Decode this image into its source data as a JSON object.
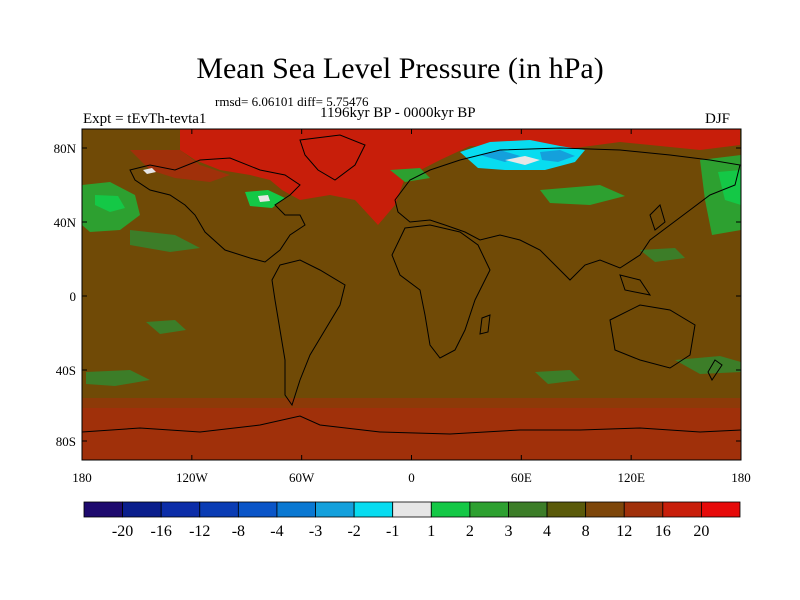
{
  "header": {
    "title": "Mean Sea Level Pressure (in hPa)",
    "stats": "rmsd= 6.06101 diff= 5.75476",
    "experiment": "Expt = tEvTh-tevta1",
    "period": "1196kyr BP - 0000kyr BP",
    "season": "DJF"
  },
  "axes": {
    "y_ticks": [
      "80N",
      "40N",
      "0",
      "40S",
      "80S"
    ],
    "x_ticks": [
      "180",
      "120W",
      "60W",
      "0",
      "60E",
      "120E",
      "180"
    ]
  },
  "colorbar": {
    "labels": [
      "-20",
      "-16",
      "-12",
      "-8",
      "-4",
      "-3",
      "-2",
      "-1",
      "1",
      "2",
      "3",
      "4",
      "8",
      "12",
      "16",
      "20"
    ],
    "colors": [
      "#1e0a6e",
      "#0a1e8c",
      "#0c2da8",
      "#0a3cb4",
      "#0a55c8",
      "#0a78d2",
      "#14a0dc",
      "#08dcf0",
      "#e6e6e6",
      "#14c846",
      "#2da030",
      "#3c7d28",
      "#5a5a0a",
      "#7d460a",
      "#a0300a",
      "#c81e0a",
      "#e60a0a"
    ]
  },
  "colors": {
    "background_field": "#704a06",
    "positive_high": "#c81e0a",
    "positive_mid": "#a0300a",
    "neutral": "#e6e6e6",
    "negative_cyan": "#08dcf0",
    "green_light": "#14c846",
    "green_mid": "#2da030",
    "green_dark": "#3c7d28",
    "coastline": "#000000"
  }
}
